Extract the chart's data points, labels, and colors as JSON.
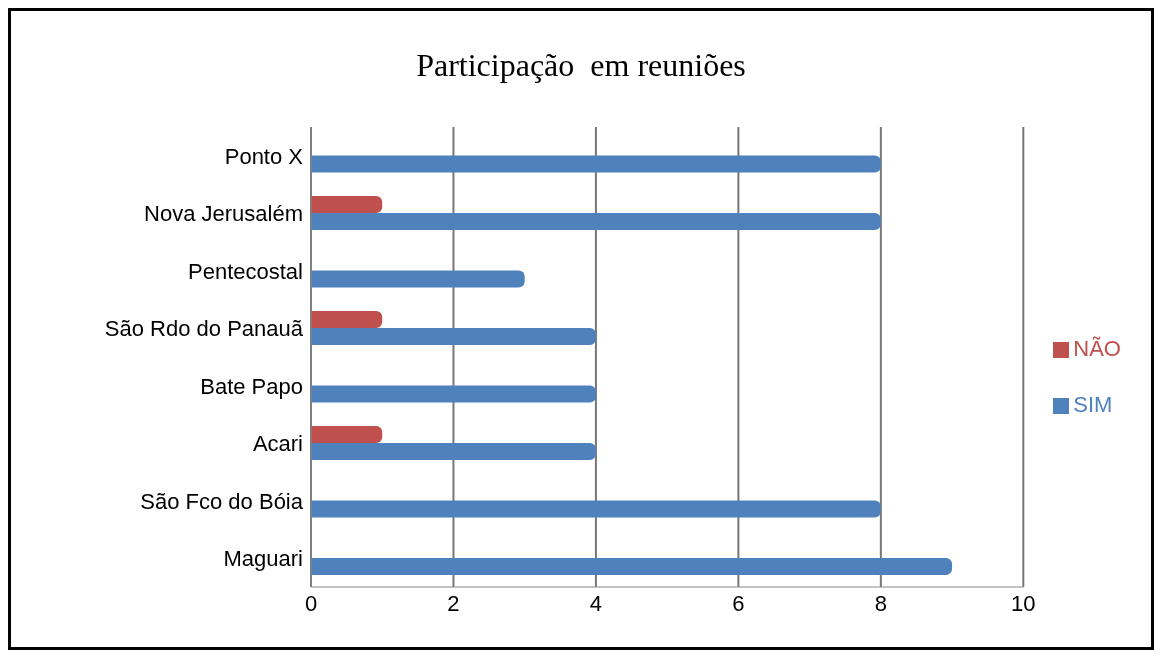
{
  "chart_data": {
    "type": "bar",
    "orientation": "horizontal",
    "title": "Participação  em reuniões",
    "categories": [
      "Ponto X",
      "Nova Jerusalém",
      "Pentecostal",
      "São Rdo do Panauã",
      "Bate Papo",
      "Acari",
      "São Fco do Bóia",
      "Maguari"
    ],
    "series": [
      {
        "name": "NÃO",
        "color": "#c0504d",
        "values": [
          0,
          1,
          0,
          1,
          0,
          1,
          0,
          0
        ]
      },
      {
        "name": "SIM",
        "color": "#4f81bd",
        "values": [
          8,
          8,
          3,
          4,
          4,
          4,
          8,
          9
        ]
      }
    ],
    "xlim": [
      0,
      10
    ],
    "xticks": [
      0,
      2,
      4,
      6,
      8,
      10
    ],
    "grid": "x",
    "legend": "right"
  }
}
